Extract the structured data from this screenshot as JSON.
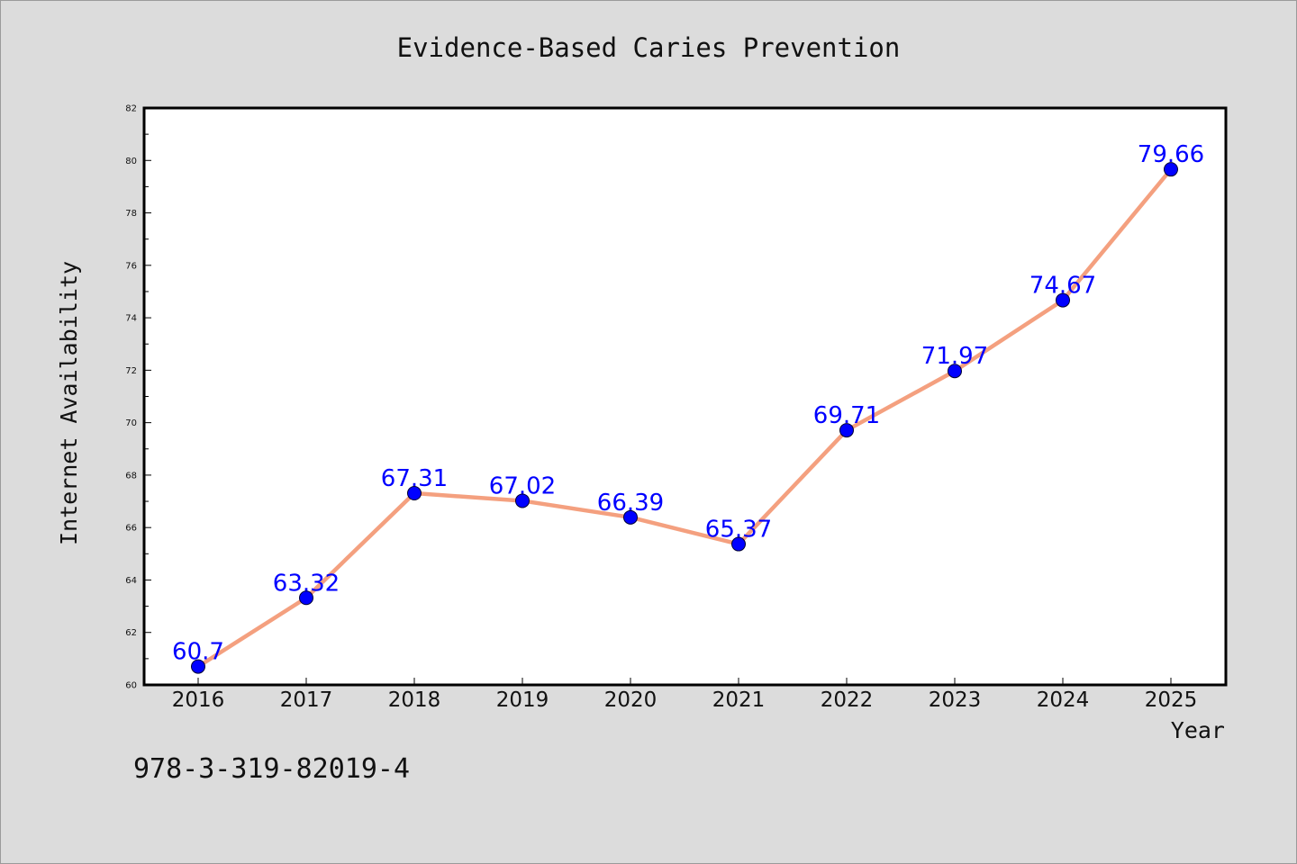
{
  "chart_data": {
    "type": "line",
    "title": "Evidence-Based Caries Prevention",
    "xlabel": "Year",
    "ylabel": "Internet Availability",
    "categories": [
      "2016",
      "2017",
      "2018",
      "2019",
      "2020",
      "2021",
      "2022",
      "2023",
      "2024",
      "2025"
    ],
    "series": [
      {
        "values": [
          60.7,
          63.32,
          67.31,
          67.02,
          66.39,
          65.37,
          69.71,
          71.97,
          74.67,
          79.66
        ],
        "labels": [
          "60.7",
          "63.32",
          "67.31",
          "67.02",
          "66.39",
          "65.37",
          "69.71",
          "71.97",
          "74.67",
          "79.66"
        ],
        "line_color": "#f4a07f",
        "marker_color": "#0000ff"
      }
    ],
    "ylim": [
      60,
      82
    ],
    "yticks": [
      "60",
      "62",
      "64",
      "66",
      "68",
      "70",
      "72",
      "74",
      "76",
      "78",
      "80",
      "82"
    ],
    "grid": false,
    "legend": "none"
  },
  "footnote": "978-3-319-82019-4",
  "colors": {
    "background": "#dcdcdc",
    "plot_background": "#ffffff",
    "line": "#f4a07f",
    "marker": "#0000ff",
    "data_label": "#0000ff"
  }
}
